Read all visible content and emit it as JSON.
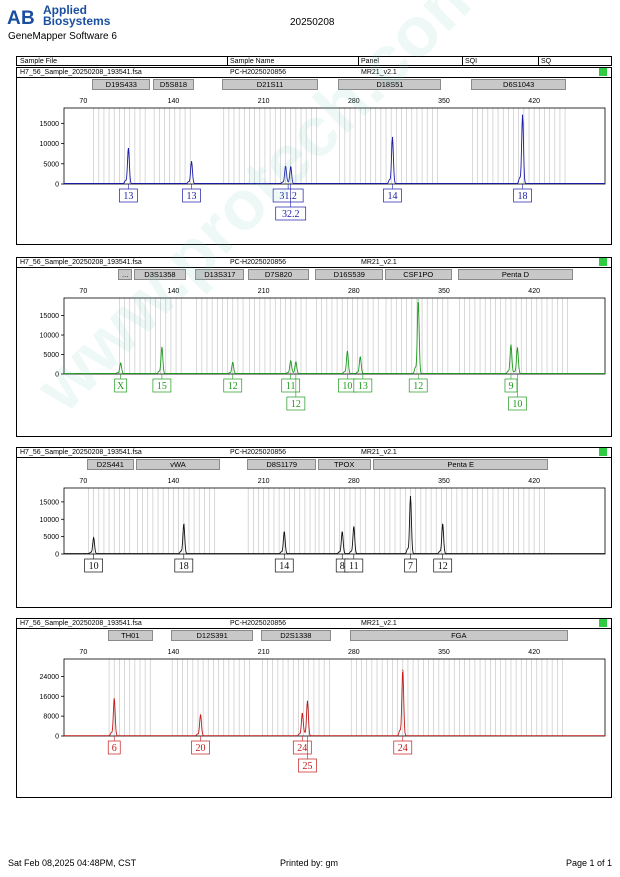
{
  "header": {
    "brand_line1": "Applied",
    "brand_line2": "Biosystems",
    "software": "GeneMapper Software 6",
    "date": "20250208"
  },
  "columns": {
    "sample_file": "Sample File",
    "sample_name": "Sample Name",
    "panel": "Panel",
    "sqi": "SQI",
    "sq": "SQ"
  },
  "sample": {
    "file": "H7_56_Sample_20250208_193541.fsa",
    "name": "PC-H2025020856",
    "panel": "MR21_v2.1"
  },
  "axis": {
    "x_ticks": [
      "70",
      "140",
      "210",
      "280",
      "350",
      "420"
    ],
    "x_range": [
      55,
      475
    ]
  },
  "watermark": "www.protech.com.cn",
  "chart_data": [
    {
      "type": "line",
      "dye": "blue",
      "color": "#1a1aa6",
      "markers": [
        {
          "label": "D19S433",
          "from": 77,
          "to": 122
        },
        {
          "label": "D5S818",
          "from": 124,
          "to": 156
        },
        {
          "label": "D21S11",
          "from": 178,
          "to": 252
        },
        {
          "label": "D18S51",
          "from": 268,
          "to": 348
        },
        {
          "label": "D6S1043",
          "from": 371,
          "to": 445
        }
      ],
      "y_ticks": [
        "0",
        "5000",
        "10000",
        "15000"
      ],
      "ylim": [
        0,
        18800
      ],
      "peaks": [
        {
          "x": 105,
          "y": 8800
        },
        {
          "x": 154,
          "y": 5500
        },
        {
          "x": 227,
          "y": 4300
        },
        {
          "x": 231,
          "y": 4200
        },
        {
          "x": 310,
          "y": 11500
        },
        {
          "x": 411,
          "y": 17000
        }
      ],
      "labels": [
        {
          "text": "13",
          "x": 105,
          "row": 0
        },
        {
          "text": "13",
          "x": 154,
          "row": 0
        },
        {
          "text": "31.2",
          "x": 229,
          "row": 0
        },
        {
          "text": "32.2",
          "x": 231,
          "row": 1
        },
        {
          "text": "14",
          "x": 310,
          "row": 0
        },
        {
          "text": "18",
          "x": 411,
          "row": 0
        }
      ]
    },
    {
      "type": "line",
      "dye": "green",
      "color": "#1f9a1f",
      "markers": [
        {
          "label": "...",
          "from": 97,
          "to": 108
        },
        {
          "label": "D3S1358",
          "from": 109,
          "to": 150
        },
        {
          "label": "D13S317",
          "from": 157,
          "to": 195
        },
        {
          "label": "D7S820",
          "from": 198,
          "to": 245
        },
        {
          "label": "D16S539",
          "from": 250,
          "to": 303
        },
        {
          "label": "CSF1PO",
          "from": 304,
          "to": 356
        },
        {
          "label": "Penta D",
          "from": 361,
          "to": 450
        }
      ],
      "y_ticks": [
        "0",
        "5000",
        "10000",
        "15000"
      ],
      "ylim": [
        0,
        19500
      ],
      "peaks": [
        {
          "x": 99,
          "y": 2700
        },
        {
          "x": 131,
          "y": 6800
        },
        {
          "x": 186,
          "y": 2900
        },
        {
          "x": 231,
          "y": 3300
        },
        {
          "x": 235,
          "y": 3000
        },
        {
          "x": 275,
          "y": 5800
        },
        {
          "x": 285,
          "y": 4300
        },
        {
          "x": 330,
          "y": 19000
        },
        {
          "x": 402,
          "y": 7400
        },
        {
          "x": 407,
          "y": 6700
        }
      ],
      "labels": [
        {
          "text": "X",
          "x": 99,
          "row": 0
        },
        {
          "text": "15",
          "x": 131,
          "row": 0
        },
        {
          "text": "12",
          "x": 186,
          "row": 0
        },
        {
          "text": "11",
          "x": 231,
          "row": 0
        },
        {
          "text": "12",
          "x": 235,
          "row": 1
        },
        {
          "text": "10",
          "x": 275,
          "row": 0
        },
        {
          "text": "13",
          "x": 287,
          "row": 0
        },
        {
          "text": "12",
          "x": 330,
          "row": 0
        },
        {
          "text": "9",
          "x": 402,
          "row": 0
        },
        {
          "text": "10",
          "x": 407,
          "row": 1
        }
      ]
    },
    {
      "type": "line",
      "dye": "black",
      "color": "#111111",
      "markers": [
        {
          "label": "D2S441",
          "from": 73,
          "to": 109
        },
        {
          "label": "vWA",
          "from": 111,
          "to": 176
        },
        {
          "label": "D8S1179",
          "from": 197,
          "to": 251
        },
        {
          "label": "TPOX",
          "from": 252,
          "to": 293
        },
        {
          "label": "Penta E",
          "from": 295,
          "to": 431
        }
      ],
      "y_ticks": [
        "0",
        "5000",
        "10000",
        "15000"
      ],
      "ylim": [
        0,
        19000
      ],
      "peaks": [
        {
          "x": 78,
          "y": 4600
        },
        {
          "x": 148,
          "y": 8500
        },
        {
          "x": 226,
          "y": 6300
        },
        {
          "x": 271,
          "y": 6300
        },
        {
          "x": 280,
          "y": 7800
        },
        {
          "x": 324,
          "y": 16500
        },
        {
          "x": 349,
          "y": 8500
        }
      ],
      "labels": [
        {
          "text": "10",
          "x": 78,
          "row": 0
        },
        {
          "text": "18",
          "x": 148,
          "row": 0
        },
        {
          "text": "14",
          "x": 226,
          "row": 0
        },
        {
          "text": "8",
          "x": 271,
          "row": 0
        },
        {
          "text": "11",
          "x": 280,
          "row": 0
        },
        {
          "text": "7",
          "x": 324,
          "row": 0
        },
        {
          "text": "12",
          "x": 349,
          "row": 0
        }
      ]
    },
    {
      "type": "line",
      "dye": "red",
      "color": "#c41a1a",
      "markers": [
        {
          "label": "TH01",
          "from": 89,
          "to": 124
        },
        {
          "label": "D12S391",
          "from": 138,
          "to": 202
        },
        {
          "label": "D2S1338",
          "from": 208,
          "to": 262
        },
        {
          "label": "FGA",
          "from": 277,
          "to": 446
        }
      ],
      "y_ticks": [
        "0",
        "8000",
        "16000",
        "24000"
      ],
      "ylim": [
        0,
        31000
      ],
      "peaks": [
        {
          "x": 94,
          "y": 15000
        },
        {
          "x": 161,
          "y": 8500
        },
        {
          "x": 240,
          "y": 9000
        },
        {
          "x": 244,
          "y": 14000
        },
        {
          "x": 318,
          "y": 26500
        }
      ],
      "labels": [
        {
          "text": "6",
          "x": 94,
          "row": 0
        },
        {
          "text": "20",
          "x": 161,
          "row": 0
        },
        {
          "text": "24",
          "x": 240,
          "row": 0
        },
        {
          "text": "25",
          "x": 244,
          "row": 1
        },
        {
          "text": "24",
          "x": 318,
          "row": 0
        }
      ]
    }
  ],
  "footer": {
    "printed_at": "Sat Feb 08,2025 04:48PM, CST",
    "printed_by": "Printed by: gm",
    "page": "Page 1 of 1"
  }
}
